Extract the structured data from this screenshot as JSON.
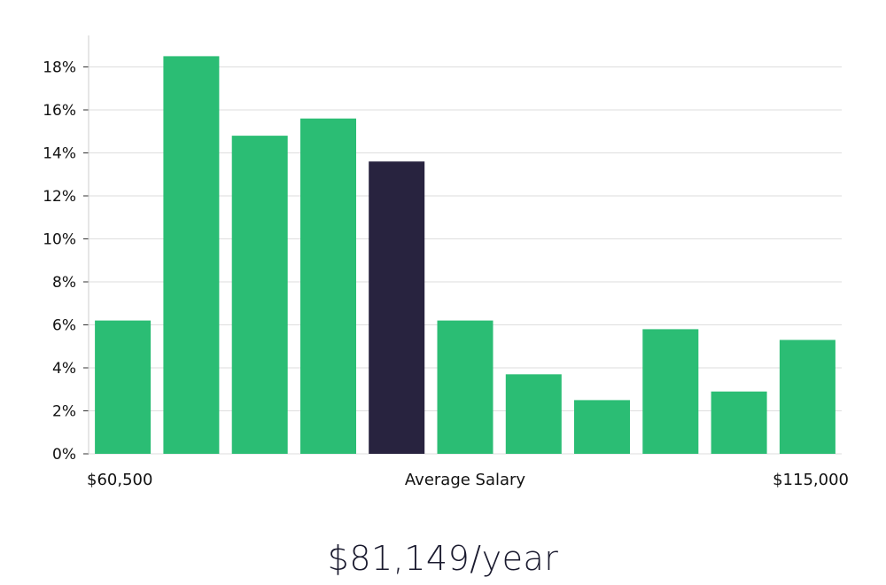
{
  "chart_data": {
    "type": "bar",
    "title": "",
    "xlabel": "Average Salary",
    "ylabel": "",
    "ylim": [
      0,
      19
    ],
    "yticks": [
      0,
      2,
      4,
      6,
      8,
      10,
      12,
      14,
      16,
      18
    ],
    "ytick_suffix": "%",
    "x_start_label": "$60,500",
    "x_end_label": "$115,000",
    "values": [
      6.2,
      18.5,
      14.8,
      15.6,
      13.6,
      6.2,
      3.7,
      2.5,
      5.8,
      2.9,
      5.3
    ],
    "highlight_index": 4,
    "grid": true
  },
  "colors": {
    "bar": "#2bbd74",
    "bar_highlight": "#28233f",
    "grid": "#dedede",
    "axis": "#cccccc"
  },
  "salary_label": "$81,149/year"
}
